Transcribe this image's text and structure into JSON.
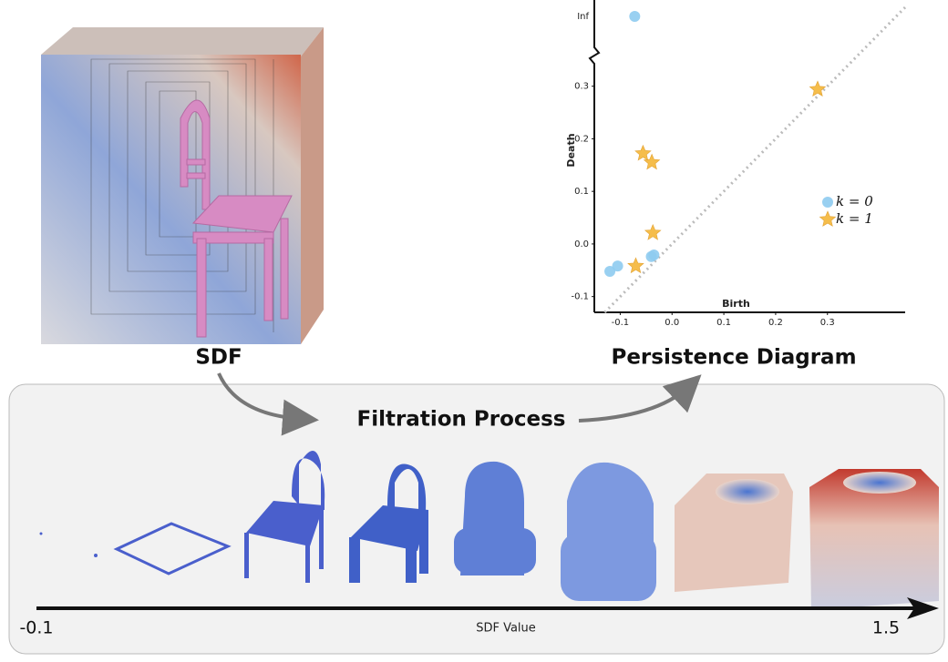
{
  "sdf": {
    "label": "SDF"
  },
  "chart_data": {
    "type": "scatter",
    "title": "Persistence Diagram",
    "xlabel": "Birth",
    "ylabel": "Death",
    "xlim": [
      -0.15,
      0.45
    ],
    "ylim": [
      -0.13,
      0.36
    ],
    "xticks": [
      -0.1,
      {
        "value": 0,
        "label": "0.0"
      },
      0.1,
      0.2,
      0.3
    ],
    "yticks": [
      -0.1,
      {
        "value": 0,
        "label": "0.0"
      },
      0.1,
      0.2,
      0.3
    ],
    "inf_label": "Inf",
    "diagonal": true,
    "series": [
      {
        "name": "k = 0",
        "color": "#8ecbf0",
        "marker": "circle",
        "x": [
          -0.12,
          -0.105,
          -0.04,
          -0.035
        ],
        "values": [
          -0.052,
          -0.042,
          -0.024,
          -0.021
        ],
        "inf_x": [
          -0.072
        ]
      },
      {
        "name": "k = 1",
        "color": "#f5b638",
        "marker": "star",
        "x": [
          -0.07,
          -0.056,
          -0.039,
          -0.037,
          0.281
        ],
        "values": [
          -0.042,
          0.172,
          0.155,
          0.021,
          0.294
        ]
      }
    ]
  },
  "filtration": {
    "title": "Filtration Process",
    "axis_label": "SDF Value",
    "axis_start": -0.1,
    "axis_end": 1.5
  }
}
